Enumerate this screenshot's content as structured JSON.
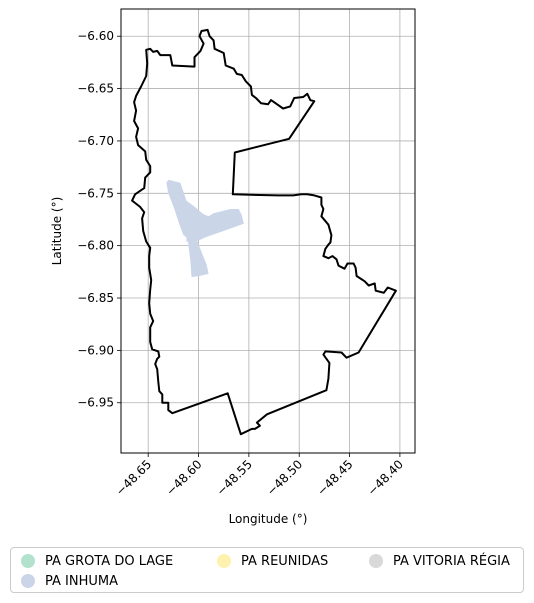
{
  "chart_data": {
    "type": "map",
    "xlabel": "Longitude (°)",
    "ylabel": "Latitude (°)",
    "xlim": [
      -48.677,
      -48.385
    ],
    "ylim": [
      -6.998,
      -6.574
    ],
    "grid": true,
    "x_ticks": [
      {
        "value": -48.65,
        "label": "−48.65"
      },
      {
        "value": -48.6,
        "label": "−48.60"
      },
      {
        "value": -48.55,
        "label": "−48.55"
      },
      {
        "value": -48.5,
        "label": "−48.50"
      },
      {
        "value": -48.45,
        "label": "−48.45"
      },
      {
        "value": -48.4,
        "label": "−48.40"
      }
    ],
    "y_ticks": [
      {
        "value": -6.6,
        "label": "−6.60"
      },
      {
        "value": -6.65,
        "label": "−6.65"
      },
      {
        "value": -6.7,
        "label": "−6.70"
      },
      {
        "value": -6.75,
        "label": "−6.75"
      },
      {
        "value": -6.8,
        "label": "−6.80"
      },
      {
        "value": -6.85,
        "label": "−6.85"
      },
      {
        "value": -6.9,
        "label": "−6.90"
      },
      {
        "value": -6.95,
        "label": "−6.95"
      }
    ],
    "boundary": [
      [
        -48.652,
        -6.613
      ],
      [
        -48.648,
        -6.612
      ],
      [
        -48.645,
        -6.615
      ],
      [
        -48.641,
        -6.614
      ],
      [
        -48.638,
        -6.618
      ],
      [
        -48.628,
        -6.618
      ],
      [
        -48.626,
        -6.628
      ],
      [
        -48.604,
        -6.629
      ],
      [
        -48.604,
        -6.62
      ],
      [
        -48.598,
        -6.614
      ],
      [
        -48.595,
        -6.607
      ],
      [
        -48.599,
        -6.6
      ],
      [
        -48.597,
        -6.595
      ],
      [
        -48.591,
        -6.594
      ],
      [
        -48.589,
        -6.6
      ],
      [
        -48.585,
        -6.604
      ],
      [
        -48.584,
        -6.612
      ],
      [
        -48.575,
        -6.616
      ],
      [
        -48.573,
        -6.628
      ],
      [
        -48.565,
        -6.631
      ],
      [
        -48.562,
        -6.636
      ],
      [
        -48.557,
        -6.637
      ],
      [
        -48.553,
        -6.643
      ],
      [
        -48.548,
        -6.648
      ],
      [
        -48.547,
        -6.656
      ],
      [
        -48.543,
        -6.659
      ],
      [
        -48.538,
        -6.664
      ],
      [
        -48.531,
        -6.665
      ],
      [
        -48.528,
        -6.661
      ],
      [
        -48.522,
        -6.665
      ],
      [
        -48.516,
        -6.669
      ],
      [
        -48.509,
        -6.667
      ],
      [
        -48.505,
        -6.659
      ],
      [
        -48.496,
        -6.658
      ],
      [
        -48.492,
        -6.655
      ],
      [
        -48.489,
        -6.661
      ],
      [
        -48.485,
        -6.662
      ],
      [
        -48.51,
        -6.698
      ],
      [
        -48.564,
        -6.711
      ],
      [
        -48.566,
        -6.751
      ],
      [
        -48.521,
        -6.752
      ],
      [
        -48.506,
        -6.752
      ],
      [
        -48.498,
        -6.751
      ],
      [
        -48.492,
        -6.751
      ],
      [
        -48.485,
        -6.752
      ],
      [
        -48.478,
        -6.754
      ],
      [
        -48.478,
        -6.761
      ],
      [
        -48.476,
        -6.765
      ],
      [
        -48.478,
        -6.772
      ],
      [
        -48.471,
        -6.78
      ],
      [
        -48.468,
        -6.79
      ],
      [
        -48.469,
        -6.797
      ],
      [
        -48.471,
        -6.799
      ],
      [
        -48.474,
        -6.803
      ],
      [
        -48.476,
        -6.81
      ],
      [
        -48.471,
        -6.812
      ],
      [
        -48.467,
        -6.81
      ],
      [
        -48.463,
        -6.813
      ],
      [
        -48.461,
        -6.819
      ],
      [
        -48.455,
        -6.822
      ],
      [
        -48.452,
        -6.817
      ],
      [
        -48.446,
        -6.817
      ],
      [
        -48.444,
        -6.821
      ],
      [
        -48.443,
        -6.829
      ],
      [
        -48.435,
        -6.834
      ],
      [
        -48.431,
        -6.838
      ],
      [
        -48.425,
        -6.836
      ],
      [
        -48.424,
        -6.843
      ],
      [
        -48.416,
        -6.845
      ],
      [
        -48.412,
        -6.84
      ],
      [
        -48.404,
        -6.843
      ],
      [
        -48.441,
        -6.902
      ],
      [
        -48.453,
        -6.907
      ],
      [
        -48.458,
        -6.902
      ],
      [
        -48.474,
        -6.901
      ],
      [
        -48.476,
        -6.904
      ],
      [
        -48.47,
        -6.912
      ],
      [
        -48.471,
        -6.927
      ],
      [
        -48.473,
        -6.938
      ],
      [
        -48.532,
        -6.961
      ],
      [
        -48.542,
        -6.969
      ],
      [
        -48.539,
        -6.972
      ],
      [
        -48.544,
        -6.975
      ],
      [
        -48.547,
        -6.975
      ],
      [
        -48.558,
        -6.98
      ],
      [
        -48.571,
        -6.941
      ],
      [
        -48.626,
        -6.96
      ],
      [
        -48.63,
        -6.957
      ],
      [
        -48.63,
        -6.95
      ],
      [
        -48.636,
        -6.95
      ],
      [
        -48.636,
        -6.942
      ],
      [
        -48.639,
        -6.939
      ],
      [
        -48.64,
        -6.93
      ],
      [
        -48.641,
        -6.918
      ],
      [
        -48.643,
        -6.913
      ],
      [
        -48.641,
        -6.908
      ],
      [
        -48.639,
        -6.906
      ],
      [
        -48.64,
        -6.901
      ],
      [
        -48.646,
        -6.899
      ],
      [
        -48.648,
        -6.892
      ],
      [
        -48.648,
        -6.878
      ],
      [
        -48.645,
        -6.872
      ],
      [
        -48.648,
        -6.865
      ],
      [
        -48.649,
        -6.855
      ],
      [
        -48.648,
        -6.842
      ],
      [
        -48.647,
        -6.833
      ],
      [
        -48.649,
        -6.821
      ],
      [
        -48.649,
        -6.81
      ],
      [
        -48.648,
        -6.802
      ],
      [
        -48.652,
        -6.796
      ],
      [
        -48.655,
        -6.786
      ],
      [
        -48.656,
        -6.774
      ],
      [
        -48.654,
        -6.768
      ],
      [
        -48.658,
        -6.763
      ],
      [
        -48.666,
        -6.757
      ],
      [
        -48.663,
        -6.751
      ],
      [
        -48.654,
        -6.745
      ],
      [
        -48.653,
        -6.735
      ],
      [
        -48.648,
        -6.73
      ],
      [
        -48.648,
        -6.724
      ],
      [
        -48.652,
        -6.718
      ],
      [
        -48.653,
        -6.71
      ],
      [
        -48.66,
        -6.704
      ],
      [
        -48.662,
        -6.696
      ],
      [
        -48.66,
        -6.688
      ],
      [
        -48.664,
        -6.681
      ],
      [
        -48.662,
        -6.671
      ],
      [
        -48.664,
        -6.663
      ],
      [
        -48.662,
        -6.657
      ],
      [
        -48.657,
        -6.648
      ],
      [
        -48.652,
        -6.638
      ],
      [
        -48.651,
        -6.626
      ],
      [
        -48.652,
        -6.613
      ]
    ],
    "series": [
      {
        "name": "PA GROTA DO LAGE",
        "color": "#b2e2cd",
        "polygon": []
      },
      {
        "name": "PA INHUMA",
        "color": "#cbd5e8",
        "polygon": [
          [
            -48.63,
            -6.737
          ],
          [
            -48.618,
            -6.74
          ],
          [
            -48.612,
            -6.757
          ],
          [
            -48.605,
            -6.762
          ],
          [
            -48.595,
            -6.77
          ],
          [
            -48.59,
            -6.772
          ],
          [
            -48.585,
            -6.769
          ],
          [
            -48.577,
            -6.767
          ],
          [
            -48.568,
            -6.765
          ],
          [
            -48.56,
            -6.765
          ],
          [
            -48.557,
            -6.771
          ],
          [
            -48.555,
            -6.779
          ],
          [
            -48.578,
            -6.787
          ],
          [
            -48.593,
            -6.792
          ],
          [
            -48.604,
            -6.797
          ],
          [
            -48.615,
            -6.79
          ],
          [
            -48.62,
            -6.777
          ],
          [
            -48.624,
            -6.765
          ],
          [
            -48.63,
            -6.75
          ],
          [
            -48.632,
            -6.74
          ],
          [
            -48.63,
            -6.737
          ]
        ]
      },
      {
        "name": "PA INHUMA",
        "color": "#cbd5e8",
        "polygon": [
          [
            -48.611,
            -6.788
          ],
          [
            -48.603,
            -6.791
          ],
          [
            -48.597,
            -6.806
          ],
          [
            -48.592,
            -6.818
          ],
          [
            -48.59,
            -6.827
          ],
          [
            -48.599,
            -6.829
          ],
          [
            -48.607,
            -6.83
          ],
          [
            -48.608,
            -6.816
          ],
          [
            -48.61,
            -6.8
          ],
          [
            -48.611,
            -6.788
          ]
        ]
      },
      {
        "name": "PA INHUMA",
        "color": "#cbd5e8",
        "polygon": [
          [
            -48.612,
            -6.788
          ],
          [
            -48.605,
            -6.79
          ],
          [
            -48.606,
            -6.797
          ],
          [
            -48.612,
            -6.796
          ],
          [
            -48.612,
            -6.788
          ]
        ]
      },
      {
        "name": "PA REUNIDAS",
        "color": "#fff2ae",
        "polygon": []
      },
      {
        "name": "PA VITORIA RÉGIA",
        "color": "#d9d9d9",
        "polygon": []
      }
    ],
    "legend": {
      "placement": "bottom-center",
      "entries": [
        {
          "label": "PA GROTA DO LAGE",
          "color": "#b2e2cd"
        },
        {
          "label": "PA INHUMA",
          "color": "#cbd5e8"
        },
        {
          "label": "PA REUNIDAS",
          "color": "#fff2ae"
        },
        {
          "label": "PA VITORIA RÉGIA",
          "color": "#d9d9d9"
        }
      ]
    }
  }
}
